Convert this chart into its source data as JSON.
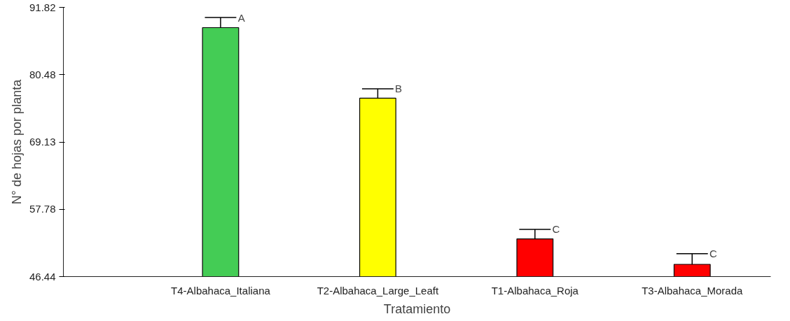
{
  "chart_data": {
    "type": "bar",
    "xlabel": "Tratamiento",
    "ylabel": "N° de hojas por planta",
    "categories": [
      "T4-Albahaca_Italiana",
      "T2-Albahaca_Large_Leaft",
      "T1-Albahaca_Roja",
      "T3-Albahaca_Morada"
    ],
    "values": [
      88.4,
      76.5,
      52.8,
      48.5
    ],
    "colors": [
      "#44cc55",
      "#ffff00",
      "#ff0000",
      "#ff0000"
    ],
    "errors": [
      [
        88.4,
        90.1
      ],
      [
        76.5,
        78.1
      ],
      [
        52.8,
        54.4
      ],
      [
        48.5,
        50.3
      ]
    ],
    "ylim": [
      46.44,
      91.82
    ],
    "yticks": [
      46.44,
      57.78,
      69.13,
      80.48,
      91.82
    ],
    "grid": false,
    "annotations": [
      {
        "text": "A",
        "x": "T4-Albahaca_Italiana",
        "y": 90.1
      },
      {
        "text": "B",
        "x": "T2-Albahaca_Large_Leaft",
        "y": 78.1
      },
      {
        "text": "C",
        "x": "T1-Albahaca_Roja",
        "y": 54.4
      },
      {
        "text": "C",
        "x": "T3-Albahaca_Morada",
        "y": 50.3
      }
    ]
  }
}
